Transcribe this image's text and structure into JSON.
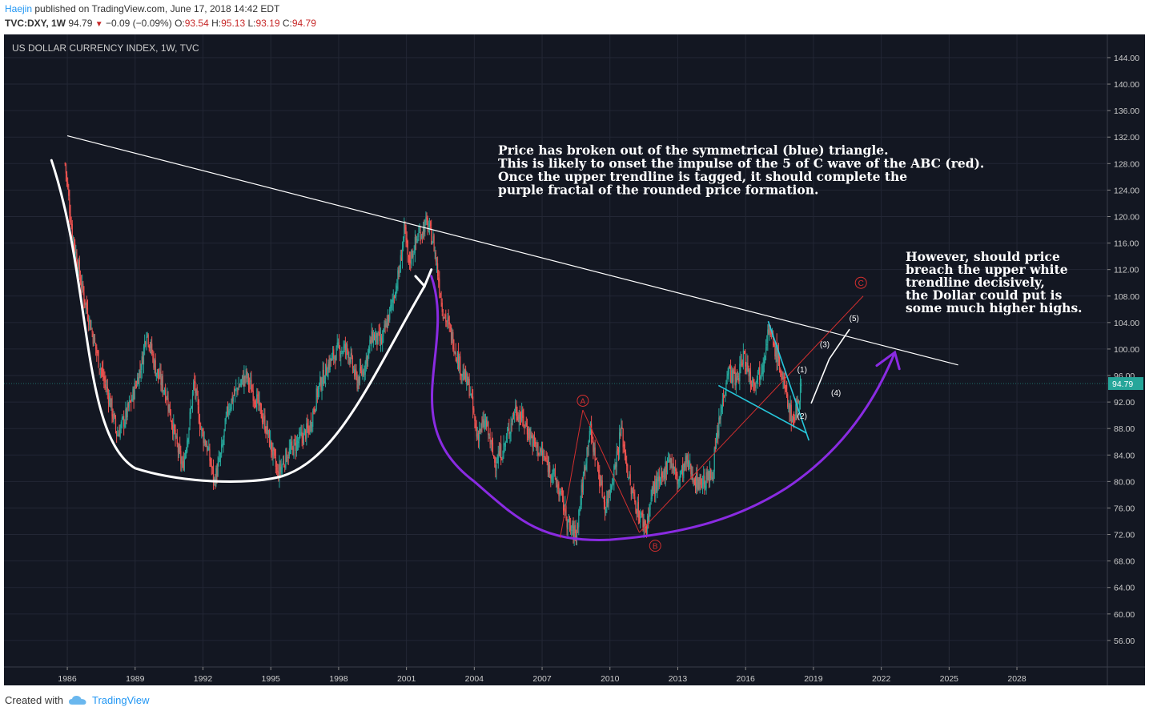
{
  "header": {
    "author": "Haejin",
    "published": "published on TradingView.com, June 17, 2018 14:42 EDT",
    "symbol": "TVC:DXY, 1W",
    "last": "94.79",
    "change": "−0.09 (−0.09%)",
    "open_label": "O:",
    "open": "93.54",
    "high_label": "H:",
    "high": "95.13",
    "low_label": "L:",
    "low": "93.19",
    "close_label": "C:",
    "close": "94.79"
  },
  "footer": {
    "created_with": "Created with",
    "brand": "TradingView"
  },
  "colors": {
    "background": "#131722",
    "grid": "#232735",
    "axis_text": "#cccccc",
    "up": "#26a69a",
    "down": "#ef5350",
    "white_line": "#ffffff",
    "purple": "#8a2be2",
    "red_wave": "#d32f2f",
    "cyan": "#26c6da",
    "price_badge": "#26a69a"
  },
  "chart_data": {
    "type": "candlestick",
    "title": "US DOLLAR CURRENCY INDEX, 1W, TVC",
    "x_ticks": [
      "1986",
      "1989",
      "1992",
      "1995",
      "1998",
      "2001",
      "2004",
      "2007",
      "2010",
      "2013",
      "2016",
      "2019",
      "2022",
      "2025",
      "2028"
    ],
    "y_ticks": [
      "56.00",
      "60.00",
      "64.00",
      "68.00",
      "72.00",
      "76.00",
      "80.00",
      "84.00",
      "88.00",
      "92.00",
      "96.00",
      "100.00",
      "104.00",
      "108.00",
      "112.00",
      "116.00",
      "120.00",
      "124.00",
      "128.00",
      "132.00",
      "136.00",
      "140.00",
      "144.00"
    ],
    "ylim": [
      52,
      147.5
    ],
    "xlim": [
      1983.2,
      2032.0
    ],
    "last_price": "94.79",
    "price_path": [
      [
        1985.9,
        128
      ],
      [
        1986.2,
        118
      ],
      [
        1986.6,
        110
      ],
      [
        1987.0,
        104
      ],
      [
        1987.4,
        98
      ],
      [
        1987.9,
        92
      ],
      [
        1988.2,
        87
      ],
      [
        1988.6,
        90
      ],
      [
        1988.9,
        93
      ],
      [
        1989.3,
        98
      ],
      [
        1989.5,
        103
      ],
      [
        1989.9,
        97
      ],
      [
        1990.4,
        93
      ],
      [
        1990.8,
        86
      ],
      [
        1991.1,
        82
      ],
      [
        1991.4,
        89
      ],
      [
        1991.6,
        95
      ],
      [
        1991.9,
        88
      ],
      [
        1992.2,
        85
      ],
      [
        1992.5,
        80
      ],
      [
        1992.8,
        84
      ],
      [
        1993.1,
        91
      ],
      [
        1993.5,
        94
      ],
      [
        1993.9,
        96
      ],
      [
        1994.4,
        92
      ],
      [
        1994.8,
        88
      ],
      [
        1995.1,
        84
      ],
      [
        1995.3,
        81
      ],
      [
        1995.7,
        84
      ],
      [
        1996.2,
        86
      ],
      [
        1996.7,
        88
      ],
      [
        1997.1,
        94
      ],
      [
        1997.6,
        98
      ],
      [
        1998.0,
        100
      ],
      [
        1998.4,
        100
      ],
      [
        1998.8,
        95
      ],
      [
        1999.1,
        97
      ],
      [
        1999.5,
        102
      ],
      [
        1999.9,
        101
      ],
      [
        2000.3,
        106
      ],
      [
        2000.7,
        112
      ],
      [
        2000.9,
        118
      ],
      [
        2001.1,
        113
      ],
      [
        2001.5,
        117
      ],
      [
        2001.9,
        119
      ],
      [
        2002.2,
        116
      ],
      [
        2002.6,
        106
      ],
      [
        2003.0,
        102
      ],
      [
        2003.4,
        97
      ],
      [
        2003.8,
        94
      ],
      [
        2004.1,
        87
      ],
      [
        2004.5,
        89
      ],
      [
        2004.9,
        83
      ],
      [
        2005.3,
        85
      ],
      [
        2005.8,
        91
      ],
      [
        2006.2,
        89
      ],
      [
        2006.6,
        86
      ],
      [
        2007.0,
        84
      ],
      [
        2007.5,
        81
      ],
      [
        2007.9,
        77
      ],
      [
        2008.2,
        73
      ],
      [
        2008.5,
        72
      ],
      [
        2008.8,
        80
      ],
      [
        2009.1,
        88
      ],
      [
        2009.4,
        83
      ],
      [
        2009.8,
        76
      ],
      [
        2010.2,
        82
      ],
      [
        2010.5,
        88
      ],
      [
        2010.9,
        79
      ],
      [
        2011.3,
        75
      ],
      [
        2011.6,
        73
      ],
      [
        2011.9,
        79
      ],
      [
        2012.3,
        80
      ],
      [
        2012.6,
        84
      ],
      [
        2013.0,
        80
      ],
      [
        2013.4,
        83
      ],
      [
        2013.8,
        80
      ],
      [
        2014.2,
        80
      ],
      [
        2014.5,
        81
      ],
      [
        2014.8,
        88
      ],
      [
        2015.2,
        97
      ],
      [
        2015.6,
        95
      ],
      [
        2015.9,
        99
      ],
      [
        2016.3,
        95
      ],
      [
        2016.7,
        97
      ],
      [
        2017.0,
        103
      ],
      [
        2017.4,
        99
      ],
      [
        2017.8,
        93
      ],
      [
        2018.1,
        89
      ],
      [
        2018.3,
        92
      ],
      [
        2018.46,
        94.79
      ]
    ],
    "annotations": [
      "Price has broken out of the symmetrical (blue) triangle.",
      "This is likely to onset the impulse of the 5 of C wave of the ABC (red).",
      "Once the upper trendline is tagged, it should complete the",
      "purple fractal of the rounded price formation."
    ],
    "annotation2": [
      "However, should price",
      "breach the upper white",
      "trendline decisively,",
      "the Dollar could put is",
      "some much higher highs."
    ],
    "wave_labels": {
      "a": "A",
      "b": "B",
      "c": "C",
      "w1": "(1)",
      "w2": "(2)",
      "w3": "(3)",
      "w4": "(4)",
      "w5": "(5)"
    }
  }
}
